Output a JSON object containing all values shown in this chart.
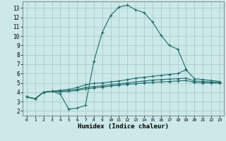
{
  "xlabel": "Humidex (Indice chaleur)",
  "background_color": "#cce8e8",
  "grid_color": "#aacccc",
  "line_color": "#1f6b6b",
  "xlim": [
    -0.5,
    23.5
  ],
  "ylim": [
    1.5,
    13.7
  ],
  "xticks": [
    0,
    1,
    2,
    3,
    4,
    5,
    6,
    7,
    8,
    9,
    10,
    11,
    12,
    13,
    14,
    15,
    16,
    17,
    18,
    19,
    20,
    21,
    22,
    23
  ],
  "yticks": [
    2,
    3,
    4,
    5,
    6,
    7,
    8,
    9,
    10,
    11,
    12,
    13
  ],
  "lines": [
    {
      "x": [
        0,
        1,
        2,
        3,
        4,
        5,
        6,
        7,
        8,
        9,
        10,
        11,
        12,
        13,
        14,
        15,
        16,
        17,
        18,
        19
      ],
      "y": [
        3.5,
        3.3,
        4.0,
        4.1,
        3.8,
        2.2,
        2.3,
        2.6,
        7.3,
        10.4,
        12.2,
        13.1,
        13.3,
        12.8,
        12.5,
        11.5,
        10.1,
        9.0,
        8.6,
        6.5
      ]
    },
    {
      "x": [
        0,
        1,
        2,
        3,
        4,
        5,
        6,
        7,
        8,
        9,
        10,
        11,
        12,
        13,
        14,
        15,
        16,
        17,
        18,
        19,
        20,
        21,
        22,
        23
      ],
      "y": [
        3.5,
        3.3,
        4.0,
        4.1,
        4.05,
        4.1,
        4.2,
        4.35,
        4.45,
        4.55,
        4.65,
        4.75,
        4.85,
        4.9,
        5.0,
        5.05,
        5.1,
        5.15,
        5.2,
        5.25,
        5.05,
        5.0,
        5.0,
        4.95
      ]
    },
    {
      "x": [
        0,
        1,
        2,
        3,
        4,
        5,
        6,
        7,
        8,
        9,
        10,
        11,
        12,
        13,
        14,
        15,
        16,
        17,
        18,
        19,
        20,
        21,
        22,
        23
      ],
      "y": [
        3.5,
        3.3,
        4.0,
        4.1,
        4.1,
        4.15,
        4.3,
        4.5,
        4.6,
        4.7,
        4.8,
        4.9,
        5.0,
        5.1,
        5.2,
        5.3,
        5.35,
        5.4,
        5.45,
        5.5,
        5.2,
        5.15,
        5.1,
        5.05
      ]
    },
    {
      "x": [
        0,
        1,
        2,
        3,
        4,
        5,
        6,
        7,
        8,
        9,
        10,
        11,
        12,
        13,
        14,
        15,
        16,
        17,
        18,
        19,
        20,
        21,
        22,
        23
      ],
      "y": [
        3.5,
        3.3,
        4.0,
        4.1,
        4.2,
        4.3,
        4.5,
        4.8,
        4.95,
        5.0,
        5.1,
        5.2,
        5.35,
        5.5,
        5.6,
        5.7,
        5.8,
        5.9,
        6.0,
        6.4,
        5.45,
        5.35,
        5.25,
        5.15
      ]
    }
  ]
}
